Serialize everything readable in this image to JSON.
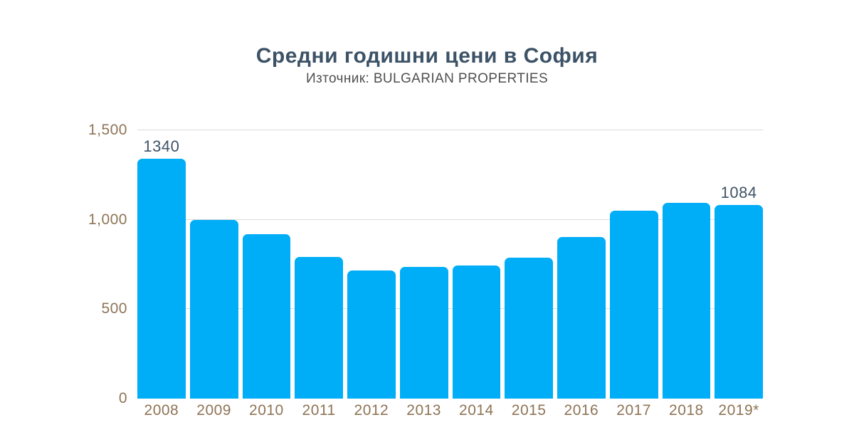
{
  "header": {
    "title": "Средни годишни цени в София",
    "subtitle": "Източник: BULGARIAN PROPERTIES"
  },
  "chart_data": {
    "type": "bar",
    "title": "Средни годишни цени в София",
    "subtitle": "Източник: BULGARIAN PROPERTIES",
    "categories": [
      "2008",
      "2009",
      "2010",
      "2011",
      "2012",
      "2013",
      "2014",
      "2015",
      "2016",
      "2017",
      "2018",
      "2019*"
    ],
    "values": [
      1340,
      1000,
      920,
      790,
      718,
      737,
      744,
      788,
      903,
      1050,
      1093,
      1084
    ],
    "bar_labels": [
      "1340",
      "",
      "",
      "",
      "",
      "",
      "",
      "",
      "",
      "",
      "",
      "1084"
    ],
    "xlabel": "",
    "ylabel": "",
    "ylim": [
      0,
      1500
    ],
    "yticks": [
      {
        "value": 0,
        "label": "0"
      },
      {
        "value": 500,
        "label": "500"
      },
      {
        "value": 1000,
        "label": "1,000"
      },
      {
        "value": 1500,
        "label": "1,500"
      }
    ],
    "grid": true,
    "legend": false,
    "colors": {
      "bar": "#00ADF7",
      "title": "#3C5266",
      "subtitle": "#4F4F4F",
      "axis_labels": "#8E7456",
      "value_labels": "#3F5366",
      "gridline": "#DCDCDC",
      "background": "#FFFFFF"
    }
  }
}
